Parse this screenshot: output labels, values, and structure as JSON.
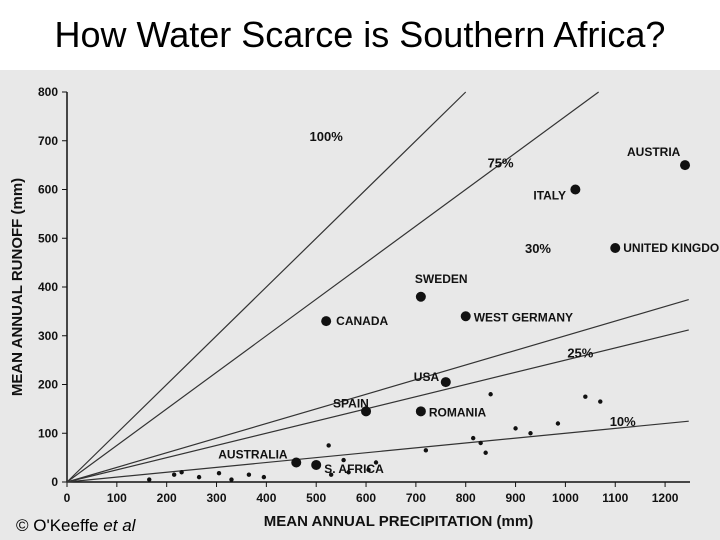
{
  "title": "How Water Scarce is Southern Africa?",
  "credit": {
    "prefix": "© O'Keeffe ",
    "etal": "et al"
  },
  "colors": {
    "panel": "#e8e8e8",
    "ink": "#111111",
    "line": "#333333"
  },
  "chart_data": {
    "type": "scatter",
    "title": "How Water Scarce is Southern Africa?",
    "xlabel": "MEAN ANNUAL PRECIPITATION (mm)",
    "ylabel": "MEAN ANNUAL RUNOFF (mm)",
    "xlim": [
      0,
      1250
    ],
    "ylim": [
      0,
      800
    ],
    "xticks": [
      0,
      100,
      200,
      300,
      400,
      500,
      600,
      700,
      800,
      900,
      1000,
      1100,
      1200
    ],
    "yticks": [
      0,
      100,
      200,
      300,
      400,
      500,
      600,
      700,
      800
    ],
    "grid": false,
    "reference_lines": [
      {
        "label": "100%",
        "ratio": 1.0,
        "label_at": [
          520,
          700
        ]
      },
      {
        "label": "75%",
        "ratio": 0.75,
        "label_at": [
          870,
          645
        ]
      },
      {
        "label": "30%",
        "ratio": 0.3,
        "label_at": [
          945,
          470
        ]
      },
      {
        "label": "25%",
        "ratio": 0.25,
        "label_at": [
          1030,
          255
        ]
      },
      {
        "label": "10%",
        "ratio": 0.1,
        "label_at": [
          1115,
          115
        ]
      }
    ],
    "labeled_points": [
      {
        "name": "AUSTRIA",
        "x": 1240,
        "y": 650
      },
      {
        "name": "ITALY",
        "x": 1020,
        "y": 600
      },
      {
        "name": "UNITED KINGDON",
        "x": 1100,
        "y": 480
      },
      {
        "name": "SWEDEN",
        "x": 710,
        "y": 380
      },
      {
        "name": "CANADA",
        "x": 520,
        "y": 330
      },
      {
        "name": "WEST GERMANY",
        "x": 800,
        "y": 340
      },
      {
        "name": "USA",
        "x": 760,
        "y": 205
      },
      {
        "name": "SPAIN",
        "x": 600,
        "y": 145
      },
      {
        "name": "ROMANIA",
        "x": 710,
        "y": 145
      },
      {
        "name": "AUSTRALIA",
        "x": 460,
        "y": 40
      },
      {
        "name": "S. AFRICA",
        "x": 500,
        "y": 35
      }
    ],
    "unlabeled_points": [
      {
        "x": 165,
        "y": 5
      },
      {
        "x": 215,
        "y": 15
      },
      {
        "x": 230,
        "y": 20
      },
      {
        "x": 265,
        "y": 10
      },
      {
        "x": 305,
        "y": 18
      },
      {
        "x": 330,
        "y": 5
      },
      {
        "x": 365,
        "y": 15
      },
      {
        "x": 395,
        "y": 10
      },
      {
        "x": 525,
        "y": 75
      },
      {
        "x": 530,
        "y": 15
      },
      {
        "x": 555,
        "y": 45
      },
      {
        "x": 565,
        "y": 20
      },
      {
        "x": 605,
        "y": 25
      },
      {
        "x": 620,
        "y": 40
      },
      {
        "x": 720,
        "y": 65
      },
      {
        "x": 815,
        "y": 90
      },
      {
        "x": 830,
        "y": 80
      },
      {
        "x": 840,
        "y": 60
      },
      {
        "x": 850,
        "y": 180
      },
      {
        "x": 900,
        "y": 110
      },
      {
        "x": 930,
        "y": 100
      },
      {
        "x": 985,
        "y": 120
      },
      {
        "x": 1040,
        "y": 175
      },
      {
        "x": 1070,
        "y": 165
      }
    ]
  }
}
